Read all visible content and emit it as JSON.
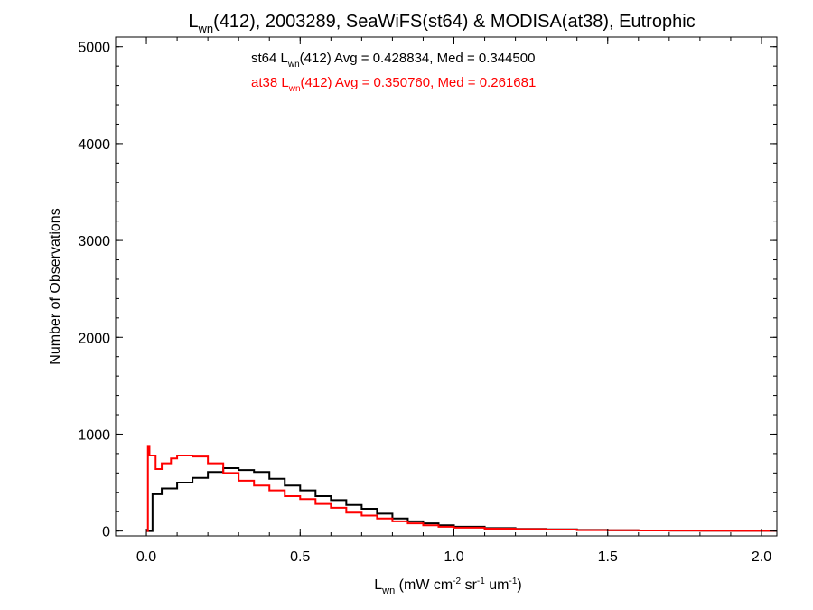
{
  "chart_data": {
    "type": "line",
    "title": {
      "pre": "L",
      "sub": "wn",
      "post": "(412), 2003289, SeaWiFS(st64) & MODISA(at38), Eutrophic"
    },
    "xlabel": {
      "pre": "L",
      "sub": "wn",
      "p1": " (mW cm",
      "s1": "-2",
      "p2": " sr",
      "s2": "-1",
      "p3": " um",
      "s3": "-1",
      "p4": ")"
    },
    "ylabel": "Number of Observations",
    "xlim": [
      -0.1,
      2.05
    ],
    "ylim": [
      -50,
      5100
    ],
    "xticks": [
      {
        "value": 0.0,
        "label": "0.0"
      },
      {
        "value": 0.5,
        "label": "0.5"
      },
      {
        "value": 1.0,
        "label": "1.0"
      },
      {
        "value": 1.5,
        "label": "1.5"
      },
      {
        "value": 2.0,
        "label": "2.0"
      }
    ],
    "yticks": [
      {
        "value": 0,
        "label": "0"
      },
      {
        "value": 1000,
        "label": "1000"
      },
      {
        "value": 2000,
        "label": "2000"
      },
      {
        "value": 3000,
        "label": "3000"
      },
      {
        "value": 4000,
        "label": "4000"
      },
      {
        "value": 5000,
        "label": "5000"
      }
    ],
    "grid": false,
    "annotations": [
      {
        "pre": "st64 L",
        "sub": "wn",
        "post": "(412) Avg = 0.428834, Med = 0.344500",
        "color": "#000000"
      },
      {
        "pre": "at38 L",
        "sub": "wn",
        "post": "(412) Avg = 0.350760, Med = 0.261681",
        "color": "#ff0000"
      }
    ],
    "series": [
      {
        "color": "#000000",
        "x": [
          0.0,
          0.02,
          0.05,
          0.1,
          0.15,
          0.2,
          0.25,
          0.3,
          0.35,
          0.4,
          0.45,
          0.5,
          0.55,
          0.6,
          0.65,
          0.7,
          0.75,
          0.8,
          0.85,
          0.9,
          0.95,
          1.0,
          1.1,
          1.2,
          1.3,
          1.4,
          1.5,
          1.6,
          1.7,
          1.8,
          1.9,
          2.0,
          2.05
        ],
        "y": [
          0,
          380,
          440,
          500,
          550,
          610,
          650,
          630,
          610,
          540,
          470,
          420,
          360,
          320,
          270,
          230,
          180,
          130,
          100,
          80,
          60,
          45,
          30,
          22,
          18,
          12,
          8,
          6,
          5,
          4,
          3,
          2,
          2
        ]
      },
      {
        "color": "#ff0000",
        "x": [
          0.0,
          0.005,
          0.01,
          0.03,
          0.05,
          0.08,
          0.1,
          0.15,
          0.2,
          0.25,
          0.3,
          0.35,
          0.4,
          0.45,
          0.5,
          0.55,
          0.6,
          0.65,
          0.7,
          0.75,
          0.8,
          0.85,
          0.9,
          0.95,
          1.0,
          1.1,
          1.2,
          1.3,
          1.4,
          1.5,
          1.6,
          1.7,
          1.8,
          1.9,
          2.0,
          2.05
        ],
        "y": [
          0,
          880,
          780,
          640,
          700,
          750,
          780,
          770,
          700,
          600,
          520,
          470,
          420,
          360,
          330,
          280,
          240,
          190,
          160,
          130,
          100,
          80,
          60,
          45,
          35,
          25,
          20,
          15,
          10,
          8,
          6,
          5,
          4,
          3,
          2,
          2
        ]
      }
    ]
  }
}
